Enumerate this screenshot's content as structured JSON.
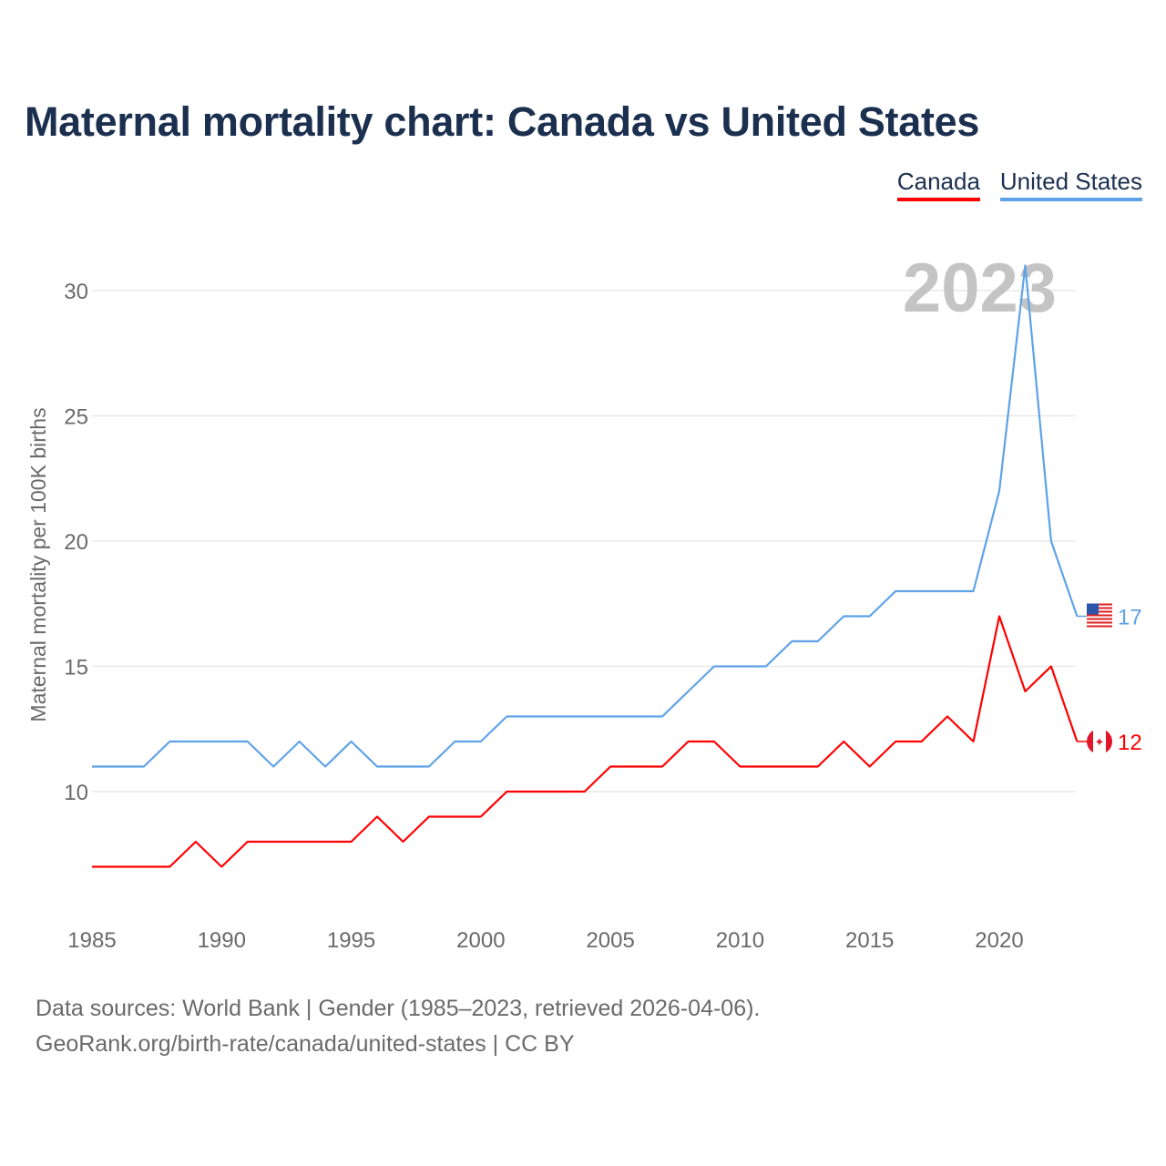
{
  "title": "Maternal mortality chart: Canada vs United States",
  "legend": [
    {
      "label": "Canada",
      "color": "#ff0000"
    },
    {
      "label": "United States",
      "color": "#5ea2e8"
    }
  ],
  "year_watermark": "2023",
  "footer": {
    "line1": "Data sources: World Bank | Gender (1985–2023, retrieved 2026-04-06).",
    "line2": "GeoRank.org/birth-rate/canada/united-states | CC BY"
  },
  "chart_data": {
    "type": "line",
    "title": "Maternal mortality chart: Canada vs United States",
    "xlabel": "",
    "ylabel": "Maternal mortality per 100K births",
    "xlim": [
      1985,
      2023
    ],
    "ylim": [
      5,
      32
    ],
    "x_ticks": [
      1985,
      1990,
      1995,
      2000,
      2005,
      2010,
      2015,
      2020
    ],
    "y_ticks": [
      10,
      15,
      20,
      25,
      30
    ],
    "grid": true,
    "legend_position": "top-right",
    "x": [
      1985,
      1986,
      1987,
      1988,
      1989,
      1990,
      1991,
      1992,
      1993,
      1994,
      1995,
      1996,
      1997,
      1998,
      1999,
      2000,
      2001,
      2002,
      2003,
      2004,
      2005,
      2006,
      2007,
      2008,
      2009,
      2010,
      2011,
      2012,
      2013,
      2014,
      2015,
      2016,
      2017,
      2018,
      2019,
      2020,
      2021,
      2022,
      2023
    ],
    "series": [
      {
        "name": "United States",
        "color": "#5ea2e8",
        "end_label": "17",
        "flag": "us-flag",
        "values": [
          11,
          11,
          11,
          12,
          12,
          12,
          12,
          11,
          12,
          11,
          12,
          11,
          11,
          11,
          12,
          12,
          13,
          13,
          13,
          13,
          13,
          13,
          13,
          14,
          15,
          15,
          15,
          16,
          16,
          17,
          17,
          18,
          18,
          18,
          18,
          22,
          31,
          20,
          17
        ]
      },
      {
        "name": "Canada",
        "color": "#ff0000",
        "end_label": "12",
        "flag": "canada-flag",
        "values": [
          7,
          7,
          7,
          7,
          8,
          7,
          8,
          8,
          8,
          8,
          8,
          9,
          8,
          9,
          9,
          9,
          10,
          10,
          10,
          10,
          11,
          11,
          11,
          12,
          12,
          11,
          11,
          11,
          11,
          12,
          11,
          12,
          12,
          13,
          12,
          17,
          14,
          15,
          12
        ]
      }
    ]
  }
}
